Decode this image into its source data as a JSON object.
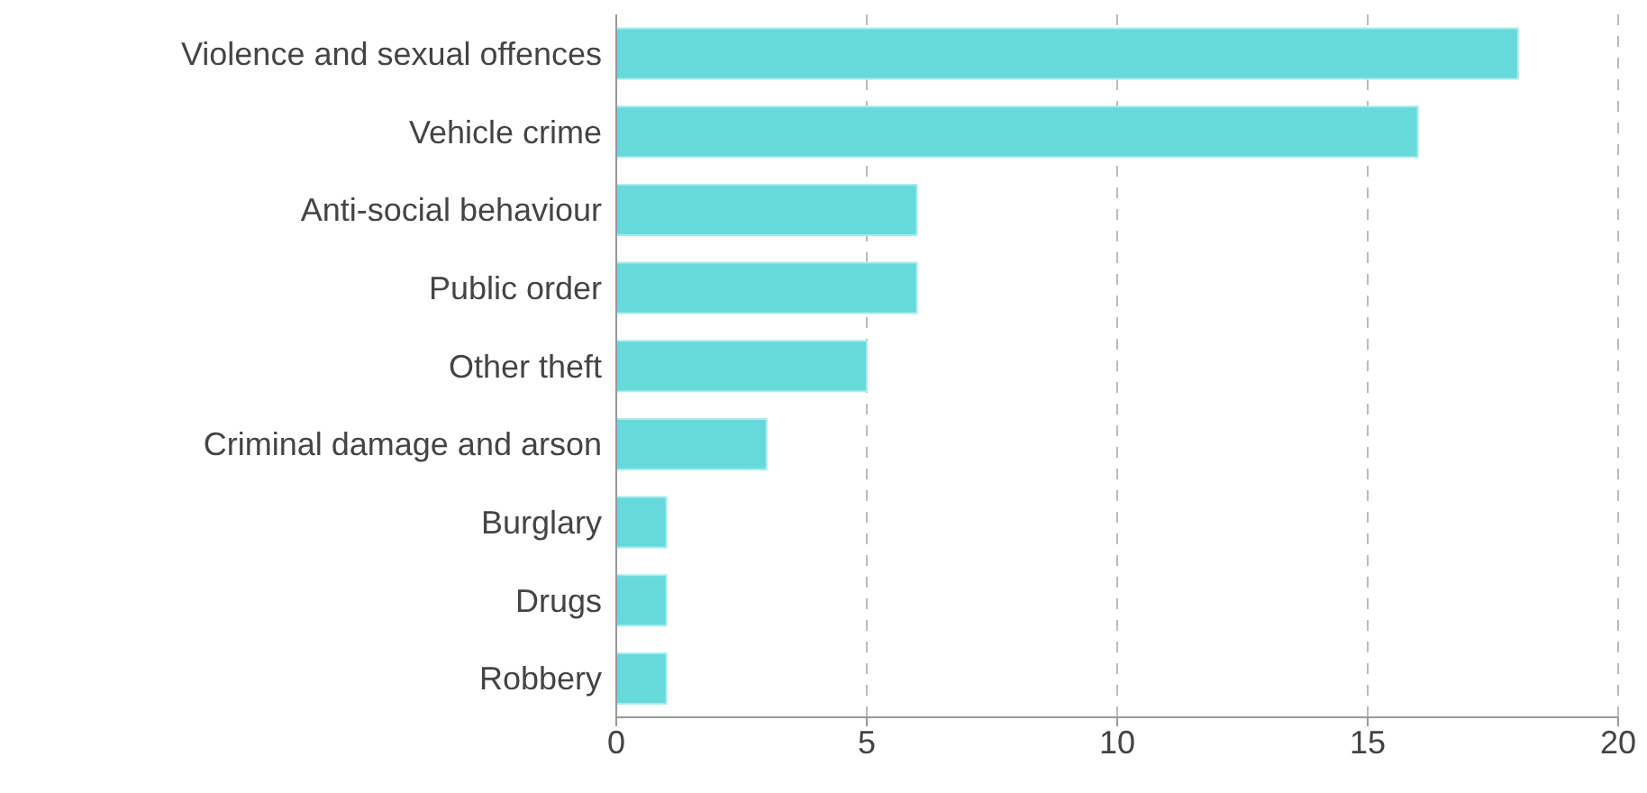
{
  "chart_data": {
    "type": "bar",
    "orientation": "horizontal",
    "categories": [
      "Violence and sexual offences",
      "Vehicle crime",
      "Anti-social behaviour",
      "Public order",
      "Other theft",
      "Criminal damage and arson",
      "Burglary",
      "Drugs",
      "Robbery"
    ],
    "values": [
      18,
      16,
      6,
      6,
      5,
      3,
      1,
      1,
      1
    ],
    "color": "#66d9db",
    "xlim": [
      0,
      20
    ],
    "xticks": [
      0,
      5,
      10,
      15,
      20
    ],
    "grid": "x"
  }
}
